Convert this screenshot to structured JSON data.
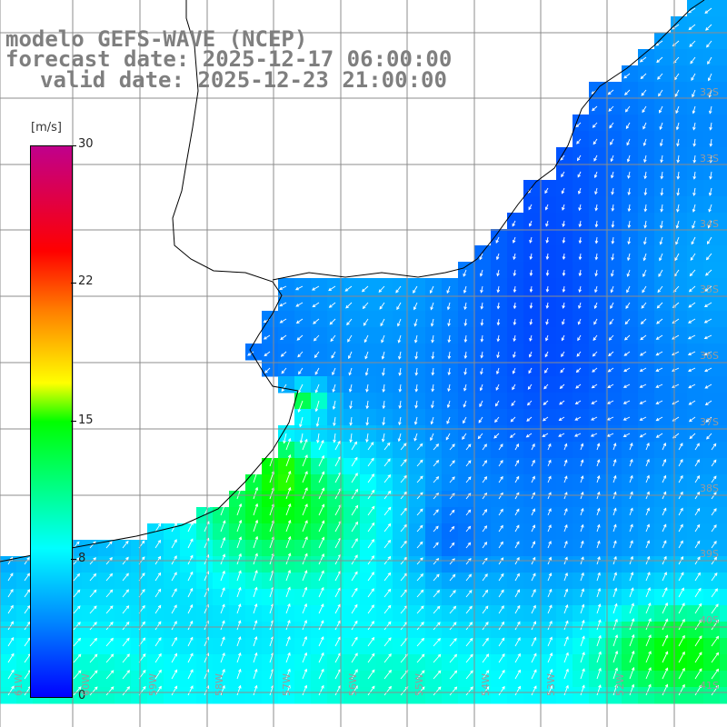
{
  "title": {
    "line1": "modelo GEFS-WAVE (NCEP)",
    "line2": "forecast date: 2025-12-17 06:00:00",
    "line3": "valid date: 2025-12-23 21:00:00"
  },
  "colorbar": {
    "unit": "[m/s]",
    "ticks": [
      "30",
      "22",
      "15",
      "8",
      "0"
    ],
    "colors": [
      "#0000ff",
      "#0080ff",
      "#00ffff",
      "#00ff00",
      "#ffff00",
      "#ff8000",
      "#ff0000",
      "#c0008c"
    ]
  },
  "lat_labels": [
    "32S",
    "33S",
    "34S",
    "35S",
    "36S",
    "37S",
    "38S",
    "39S",
    "40S",
    "41S"
  ],
  "lon_labels": [
    "61W",
    "60W",
    "59W",
    "58W",
    "57W",
    "56W",
    "55W",
    "54W",
    "53W",
    "52W"
  ],
  "map": {
    "land_color": "#ffffff",
    "coast_color": "#000000",
    "grid_color": "#8c8c8c",
    "arrow_color": "#ffffff"
  }
}
